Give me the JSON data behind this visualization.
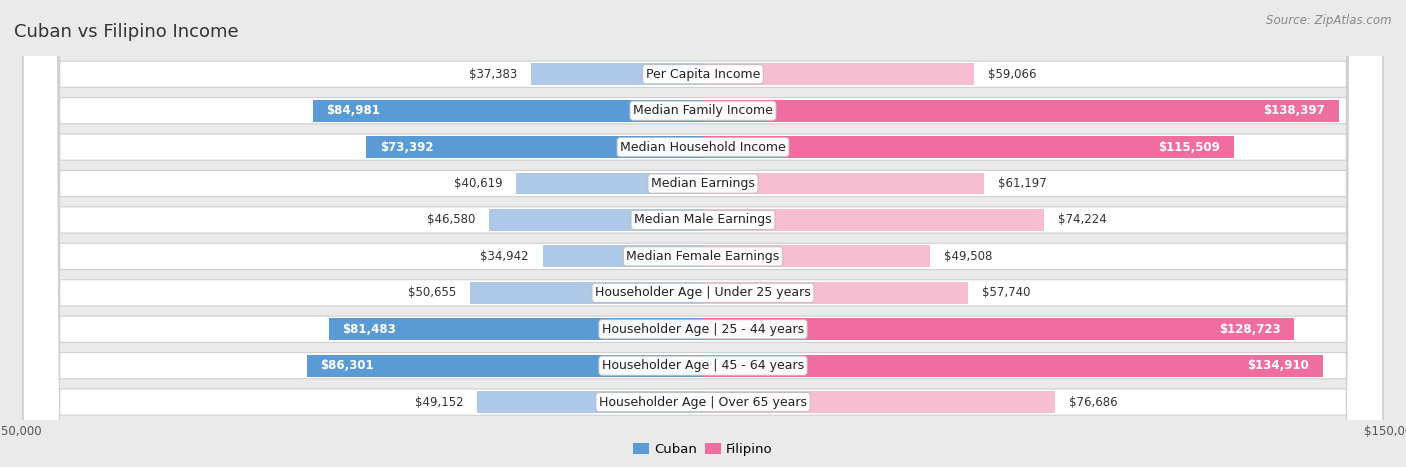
{
  "title": "Cuban vs Filipino Income",
  "source": "Source: ZipAtlas.com",
  "categories": [
    "Per Capita Income",
    "Median Family Income",
    "Median Household Income",
    "Median Earnings",
    "Median Male Earnings",
    "Median Female Earnings",
    "Householder Age | Under 25 years",
    "Householder Age | 25 - 44 years",
    "Householder Age | 45 - 64 years",
    "Householder Age | Over 65 years"
  ],
  "cuban_values": [
    37383,
    84981,
    73392,
    40619,
    46580,
    34942,
    50655,
    81483,
    86301,
    49152
  ],
  "filipino_values": [
    59066,
    138397,
    115509,
    61197,
    74224,
    49508,
    57740,
    128723,
    134910,
    76686
  ],
  "cuban_color_light": "#aec9e8",
  "cuban_color_dark": "#5b9bd5",
  "filipino_color_light": "#f7bdd0",
  "filipino_color_dark": "#f06da0",
  "axis_max": 150000,
  "bg_color": "#eaeaea",
  "row_bg": "#ffffff",
  "row_border": "#d0d0d0",
  "label_fontsize": 9,
  "title_fontsize": 13,
  "value_fontsize": 8.5,
  "legend_fontsize": 9.5,
  "cuban_threshold": 60000,
  "filipino_threshold": 100000
}
